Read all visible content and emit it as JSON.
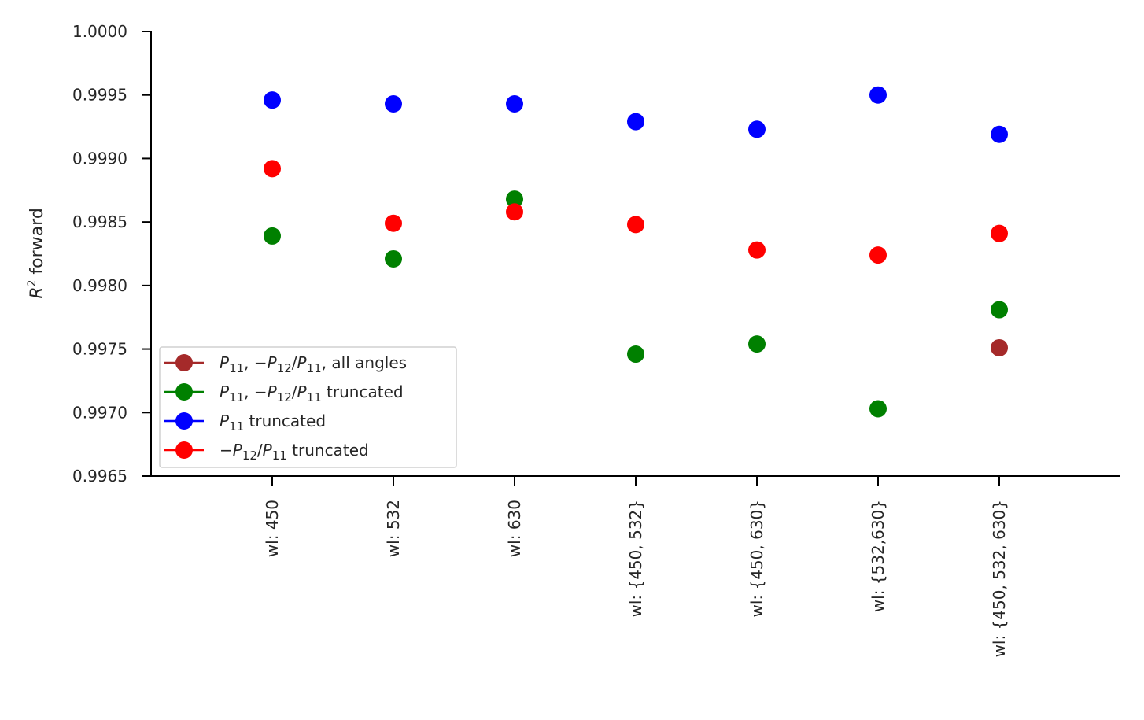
{
  "chart_data": {
    "type": "scatter",
    "ylabel": "R² forward",
    "ylim": [
      0.9965,
      1.0
    ],
    "ytick_labels": [
      "0.9965",
      "0.9970",
      "0.9975",
      "0.9980",
      "0.9985",
      "0.9990",
      "0.9995",
      "1.0000"
    ],
    "yticks": [
      0.9965,
      0.997,
      0.9975,
      0.998,
      0.9985,
      0.999,
      0.9995,
      1.0
    ],
    "categories": [
      "wl: 450",
      "wl: 532",
      "wl: 630",
      "wl: {450, 532}",
      "wl: {450, 630}",
      "wl: {532,630}",
      "wl: {450, 532, 630}"
    ],
    "grid": false,
    "legend_position": "lower-left",
    "series": [
      {
        "name": "P11, −P12/P11, all angles",
        "legend_parts": [
          "P",
          "11",
          ", −",
          "P",
          "12",
          "/",
          "P",
          "11",
          ", all angles"
        ],
        "color": "#a52a2a",
        "values": [
          null,
          null,
          null,
          null,
          null,
          null,
          0.99751
        ]
      },
      {
        "name": "P11, −P12/P11 truncated",
        "legend_parts": [
          "P",
          "11",
          ", −",
          "P",
          "12",
          "/",
          "P",
          "11",
          " truncated"
        ],
        "color": "#008000",
        "values": [
          0.99839,
          0.99821,
          0.99868,
          0.99746,
          0.99754,
          0.99703,
          0.99781
        ]
      },
      {
        "name": "P11 truncated",
        "legend_parts": [
          "P",
          "11",
          " truncated"
        ],
        "color": "#0000ff",
        "values": [
          0.99946,
          0.99943,
          0.99943,
          0.99929,
          0.99923,
          0.9995,
          0.99919
        ]
      },
      {
        "name": "−P12/P11 truncated",
        "legend_parts": [
          "−",
          "P",
          "12",
          "/",
          "P",
          "11",
          " truncated"
        ],
        "color": "#ff0000",
        "values": [
          0.99892,
          0.99849,
          0.99858,
          0.99848,
          0.99828,
          0.99824,
          0.99841
        ]
      }
    ]
  }
}
